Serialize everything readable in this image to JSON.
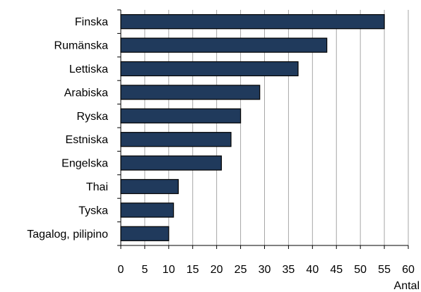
{
  "chart_data": {
    "type": "bar",
    "orientation": "horizontal",
    "categories": [
      "Finska",
      "Rumänska",
      "Lettiska",
      "Arabiska",
      "Ryska",
      "Estniska",
      "Engelska",
      "Thai",
      "Tyska",
      "Tagalog, pilipino"
    ],
    "values": [
      55,
      43,
      37,
      29,
      25,
      23,
      21,
      12,
      11,
      10
    ],
    "xlabel": "Antal",
    "xlim": [
      0,
      60
    ],
    "xticks": [
      "0",
      "5",
      "10",
      "15",
      "20",
      "25",
      "30",
      "35",
      "40",
      "45",
      "50",
      "55",
      "60"
    ],
    "grid": "vertical",
    "bar_color": "#203a5c",
    "bar_edge_color": "#000000"
  }
}
